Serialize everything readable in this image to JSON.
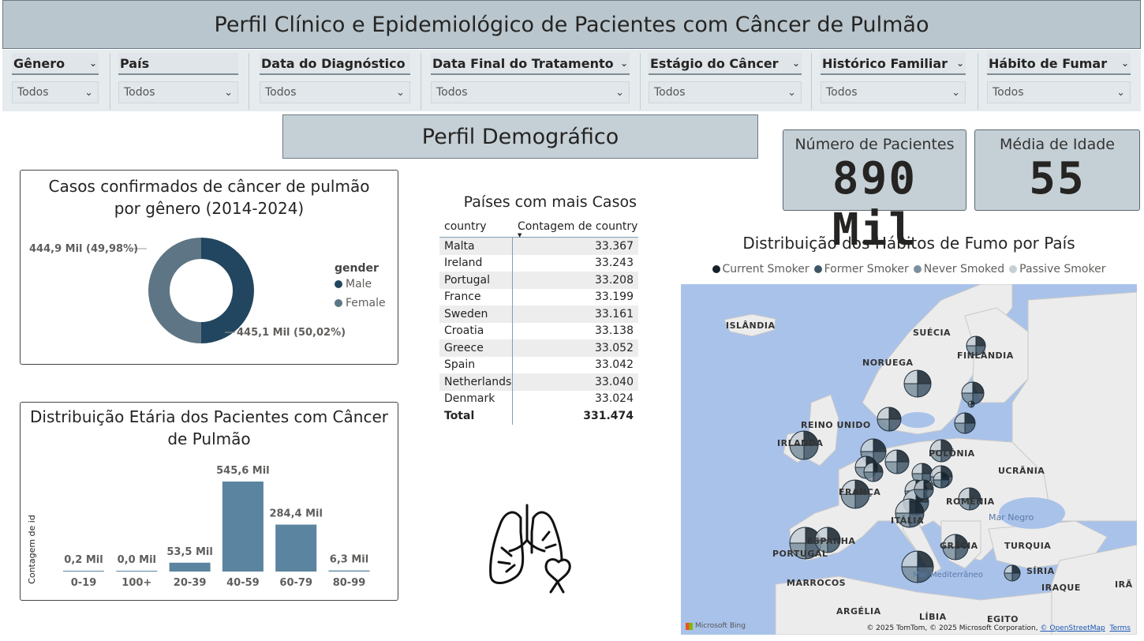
{
  "title": "Perfil Clínico e Epidemiológico de Pacientes com Câncer de Pulmão",
  "filters": [
    {
      "label": "Gênero",
      "value": "Todos"
    },
    {
      "label": "País",
      "value": "Todos"
    },
    {
      "label": "Data do Diagnóstico",
      "value": "Todos"
    },
    {
      "label": "Data Final do Tratamento",
      "value": "Todos"
    },
    {
      "label": "Estágio do Câncer",
      "value": "Todos"
    },
    {
      "label": "Histórico Familiar",
      "value": "Todos"
    },
    {
      "label": "Hábito de Fumar",
      "value": "Todos"
    }
  ],
  "section_title": "Perfil Demográfico",
  "kpis": {
    "patients": {
      "label": "Número de Pacientes",
      "value": "890 Mil"
    },
    "age": {
      "label": "Média de Idade",
      "value": "55"
    }
  },
  "chart_data": [
    {
      "type": "pie",
      "title": "Casos confirmados de câncer de pulmão por gênero (2014-2024)",
      "legend_title": "gender",
      "legend_position": "right",
      "categories": [
        "Male",
        "Female"
      ],
      "values": [
        445.1,
        444.9
      ],
      "data_labels": [
        "445,1 Mil (50,02%)",
        "444,9 Mil (49,98%)"
      ],
      "colors": [
        "#22465f",
        "#5e7585"
      ]
    },
    {
      "type": "bar",
      "title": "Distribuição Etária dos Pacientes com Câncer de Pulmão",
      "ylabel": "Contagem de id",
      "categories": [
        "0-19",
        "100+",
        "20-39",
        "40-59",
        "60-79",
        "80-99"
      ],
      "values": [
        0.2,
        0.0,
        53.5,
        545.6,
        284.4,
        6.3
      ],
      "data_labels": [
        "0,2 Mil",
        "0,0 Mil",
        "53,5 Mil",
        "545,6 Mil",
        "284,4 Mil",
        "6,3 Mil"
      ],
      "color": "#5a84a0",
      "ylim": [
        0,
        545.6
      ]
    }
  ],
  "table": {
    "title": "Países com mais Casos",
    "col1": "country",
    "col2": "Contagem de country",
    "rows": [
      {
        "country": "Malta",
        "count": "33.367"
      },
      {
        "country": "Ireland",
        "count": "33.243"
      },
      {
        "country": "Portugal",
        "count": "33.208"
      },
      {
        "country": "France",
        "count": "33.199"
      },
      {
        "country": "Sweden",
        "count": "33.161"
      },
      {
        "country": "Croatia",
        "count": "33.138"
      },
      {
        "country": "Greece",
        "count": "33.052"
      },
      {
        "country": "Spain",
        "count": "33.042"
      },
      {
        "country": "Netherlands",
        "count": "33.040"
      },
      {
        "country": "Denmark",
        "count": "33.024"
      }
    ],
    "total_label": "Total",
    "total_value": "331.474"
  },
  "map": {
    "title": "Distribuição dos Hábitos de Fumo por País",
    "legend": [
      {
        "label": "Current Smoker",
        "color": "#15222c"
      },
      {
        "label": "Former Smoker",
        "color": "#3f5668"
      },
      {
        "label": "Never Smoked",
        "color": "#7b909e"
      },
      {
        "label": "Passive Smoker",
        "color": "#c5cfd5"
      }
    ],
    "labels": {
      "islandia": "ISLÂNDIA",
      "suecia": "SUÉCIA",
      "finlandia": "FINLÂNDIA",
      "noruega": "NORUEGA",
      "reino_unido": "REINO UNIDO",
      "irlanda": "IRLANDA",
      "polonia": "POLÔNIA",
      "ucrania": "UCRÂNIA",
      "franca": "FRANÇA",
      "romenia": "ROMÊNIA",
      "italia": "ITÁLIA",
      "espanha": "ESPANHA",
      "portugal": "PORTUGAL",
      "grecia": "GRÉCIA",
      "turquia": "TURQUIA",
      "siria": "SÍRIA",
      "iraque": "IRAQUE",
      "ira": "IRÃ",
      "marrocos": "MARROCOS",
      "argelia": "ARGÉLIA",
      "libia": "LÍBIA",
      "egito": "EGITO",
      "mar_negro": "Mar Negro",
      "mediterraneo": "Mar Mediterrâneo"
    },
    "bing": "Microsoft Bing",
    "attribution": "© 2025 TomTom, © 2025 Microsoft Corporation,",
    "osm": "© OpenStreetMap",
    "terms": "Terms"
  }
}
